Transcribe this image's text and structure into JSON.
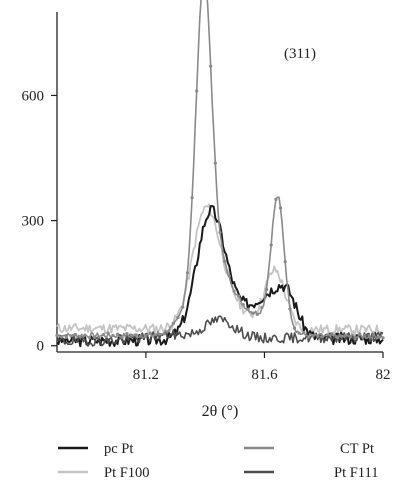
{
  "chart_data": {
    "type": "line",
    "xlabel": "2θ (°)",
    "ylabel": "",
    "xlim": [
      80.9,
      82.0
    ],
    "ylim": [
      -15,
      800
    ],
    "x_ticks": [
      81.2,
      81.6,
      82
    ],
    "x_tick_labels": [
      "81.2",
      "81.6",
      "82"
    ],
    "y_ticks": [
      0,
      300,
      600
    ],
    "y_tick_labels": [
      "0",
      "300",
      "600"
    ],
    "grid": false,
    "legend_position": "bottom",
    "annotation": {
      "text": "(311)",
      "x": 81.72,
      "y": 690
    },
    "series": [
      {
        "name": "pc Pt",
        "color": "#1a1a1a",
        "width": 2.0,
        "markers": false,
        "peaks": [
          {
            "center": 81.415,
            "height": 235,
            "sigma": 0.045
          },
          {
            "center": 81.46,
            "height": 90,
            "sigma": 0.07
          },
          {
            "center": 81.62,
            "height": 95,
            "sigma": 0.055
          },
          {
            "center": 81.68,
            "height": 65,
            "sigma": 0.035
          }
        ],
        "baseline": [
          12,
          18
        ],
        "noise": 14,
        "seed": 3
      },
      {
        "name": "CT Pt",
        "color": "#8a8a8a",
        "width": 1.6,
        "markers": true,
        "peaks": [
          {
            "center": 81.395,
            "height": 690,
            "sigma": 0.026
          },
          {
            "center": 81.425,
            "height": 190,
            "sigma": 0.065
          },
          {
            "center": 81.645,
            "height": 300,
            "sigma": 0.022
          },
          {
            "center": 81.6,
            "height": 45,
            "sigma": 0.06
          }
        ],
        "baseline": [
          25,
          22
        ],
        "noise": 6,
        "seed": 7
      },
      {
        "name": "Pt F100",
        "color": "#c4c4c4",
        "width": 1.8,
        "markers": false,
        "peaks": [
          {
            "center": 81.4,
            "height": 255,
            "sigma": 0.045
          },
          {
            "center": 81.47,
            "height": 70,
            "sigma": 0.06
          },
          {
            "center": 81.635,
            "height": 140,
            "sigma": 0.035
          }
        ],
        "baseline": [
          42,
          38
        ],
        "noise": 12,
        "seed": 11
      },
      {
        "name": "Pt F111",
        "color": "#4d4d4d",
        "width": 1.6,
        "markers": false,
        "peaks": [
          {
            "center": 81.45,
            "height": 45,
            "sigma": 0.05
          },
          {
            "center": 81.28,
            "height": 12,
            "sigma": 0.08
          }
        ],
        "baseline": [
          10,
          22
        ],
        "noise": 12,
        "seed": 19
      }
    ]
  },
  "legend": {
    "items": [
      {
        "label": "pc Pt",
        "color": "#1a1a1a"
      },
      {
        "label": "CT Pt",
        "color": "#8a8a8a"
      },
      {
        "label": "Pt F100",
        "color": "#c4c4c4"
      },
      {
        "label": "Pt F111",
        "color": "#4d4d4d"
      }
    ]
  }
}
